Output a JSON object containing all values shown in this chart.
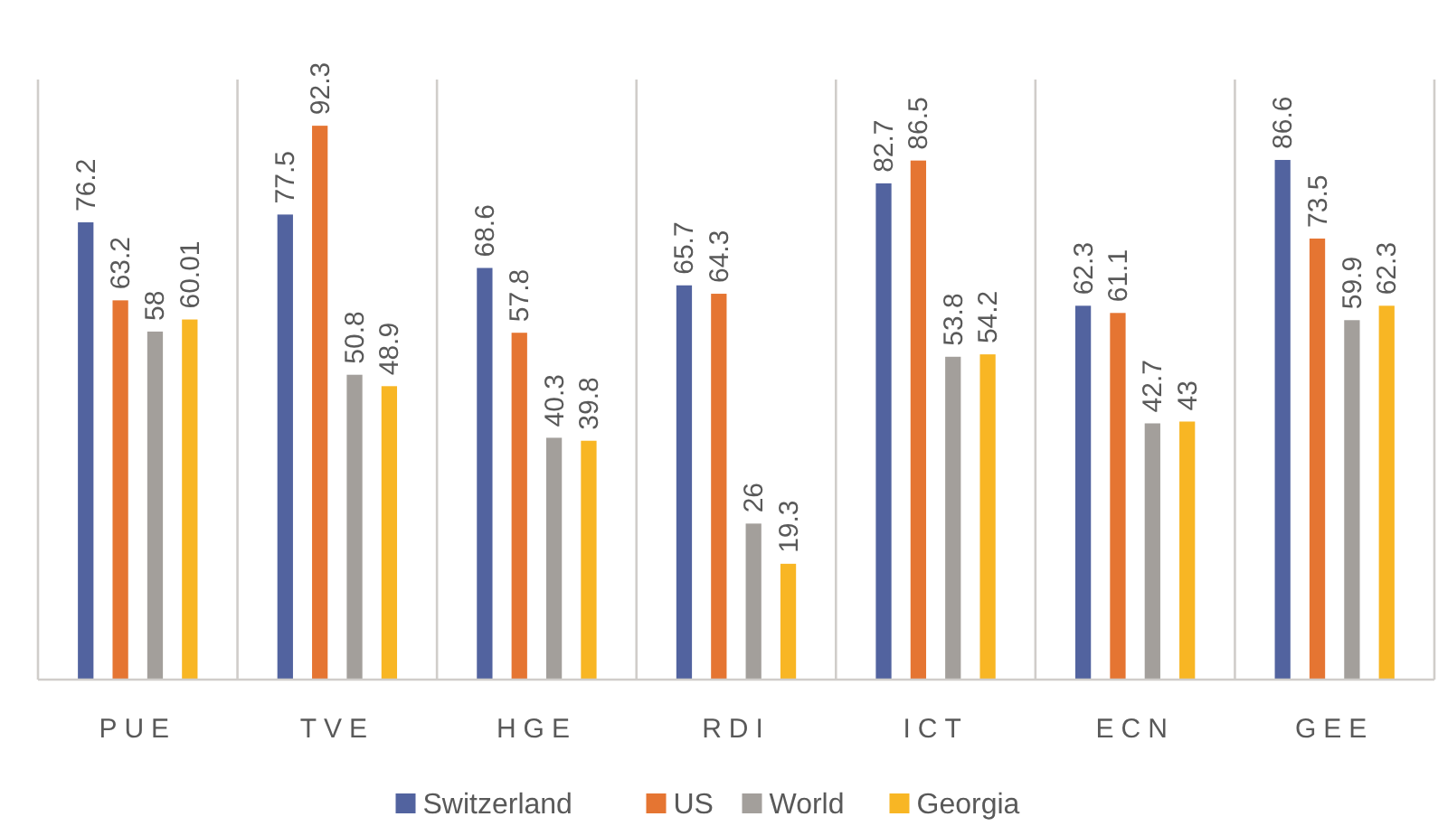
{
  "chart_data": {
    "type": "bar",
    "categories": [
      "PUE",
      "TVE",
      "HGE",
      "RDI",
      "ICT",
      "ECN",
      "GEE"
    ],
    "series": [
      {
        "name": "Switzerland",
        "color": "#52639f",
        "values": [
          76.2,
          77.5,
          68.6,
          65.7,
          82.7,
          62.3,
          86.6
        ]
      },
      {
        "name": "US",
        "color": "#e57532",
        "values": [
          63.2,
          92.3,
          57.8,
          64.3,
          86.5,
          61.1,
          73.5
        ]
      },
      {
        "name": "World",
        "color": "#a39f9b",
        "values": [
          58,
          50.8,
          40.3,
          26,
          53.8,
          42.7,
          59.9
        ]
      },
      {
        "name": "Georgia",
        "color": "#f8b624",
        "values": [
          60.01,
          48.9,
          39.8,
          19.3,
          54.2,
          43,
          62.3
        ]
      }
    ],
    "ylim": [
      0,
      100
    ],
    "tick_labels": "x",
    "grid": "x",
    "data_labels": true,
    "legend": "bottom"
  }
}
